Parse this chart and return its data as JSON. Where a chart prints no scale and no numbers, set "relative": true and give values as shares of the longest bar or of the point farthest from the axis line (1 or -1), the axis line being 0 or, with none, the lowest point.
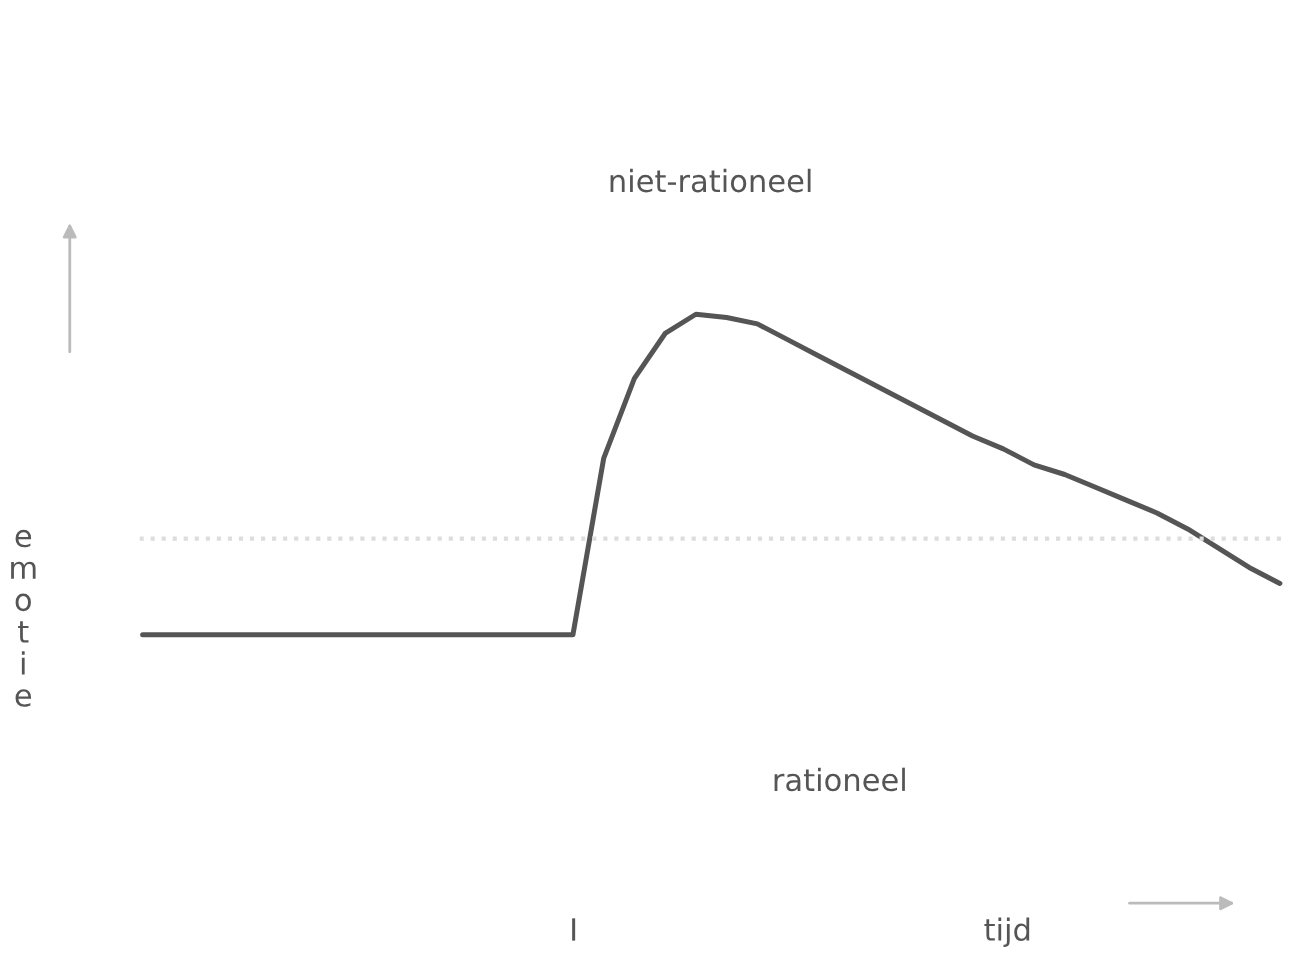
{
  "chart_data": {
    "type": "line",
    "relative": true,
    "ylabel": "emotie",
    "categories": [
      null,
      null,
      null,
      null,
      null,
      null,
      null,
      null,
      null,
      null,
      null,
      null,
      null,
      null,
      null,
      null,
      null,
      null,
      null,
      null,
      null,
      null,
      null,
      null,
      null,
      null,
      null,
      null,
      null,
      null,
      null,
      null,
      null,
      null,
      null,
      null,
      null,
      null
    ],
    "series": [
      {
        "color": "#555555",
        "values": [
          0,
          0,
          0,
          0,
          0,
          0,
          0,
          0,
          0,
          0,
          0,
          0,
          0,
          0,
          0,
          0.55,
          0.8,
          0.94,
          1,
          0.99,
          0.97,
          0.92,
          0.87,
          0.82,
          0.77,
          0.72,
          0.67,
          0.62,
          0.58,
          0.53,
          0.5,
          0.46,
          0.42,
          0.38,
          0.33,
          0.27,
          0.21,
          0.16
        ]
      }
    ],
    "ref_lines": [
      {
        "axis": "y",
        "value": 0.3,
        "color": "#dddddd",
        "line_style": "dotted"
      }
    ],
    "annotations": [
      "niet-rationeel",
      "rationeel",
      "I",
      "tijd"
    ],
    "legend": false,
    "marker": "none",
    "line_style": "solid"
  }
}
